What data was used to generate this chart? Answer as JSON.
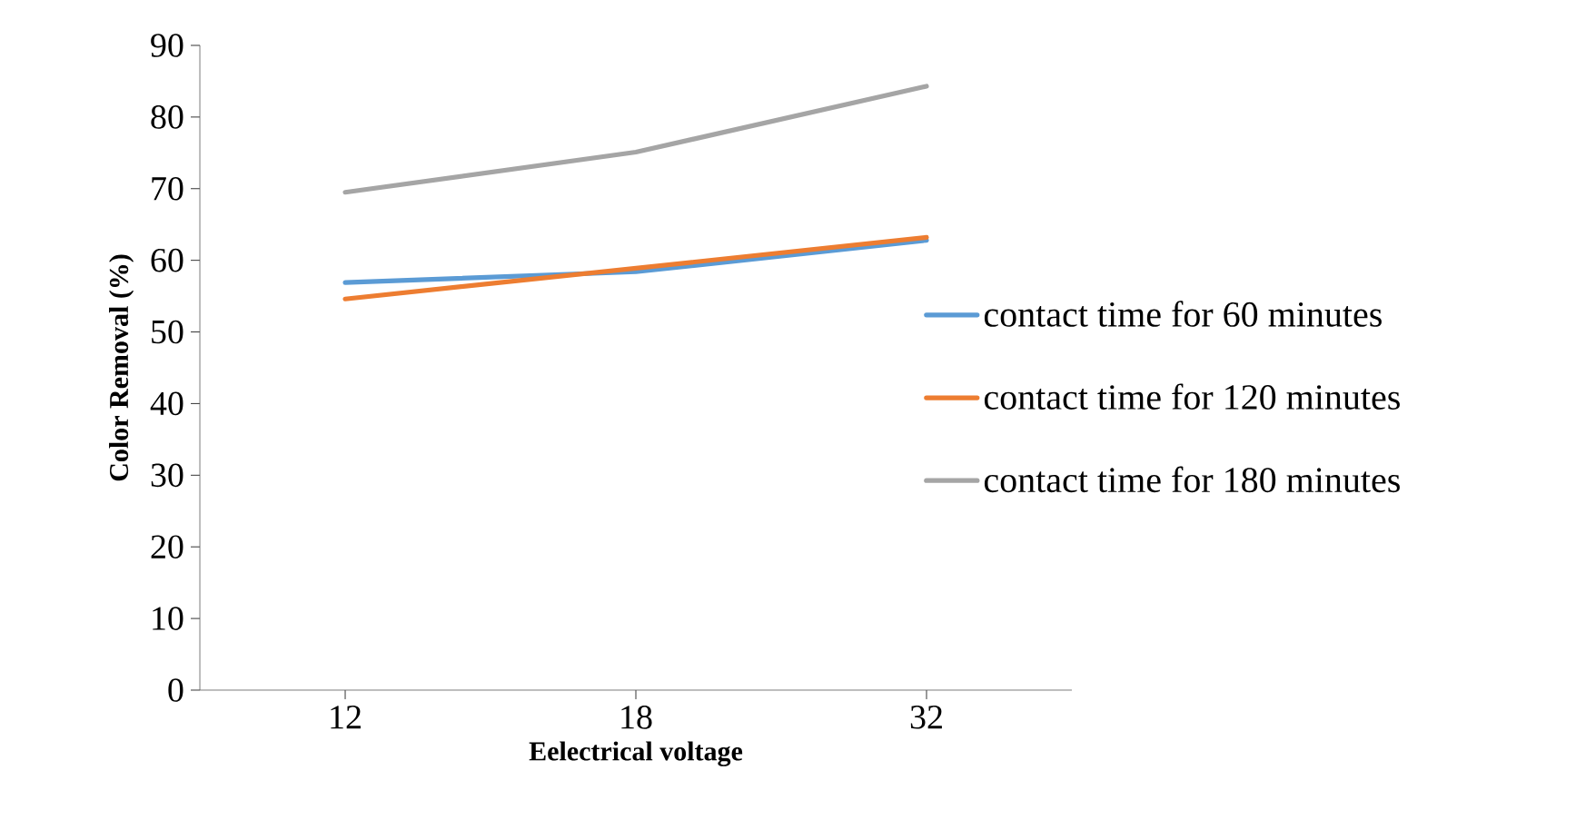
{
  "chart_data": {
    "type": "line",
    "xlabel": "Eelectrical voltage",
    "ylabel": "Color Removal (%)",
    "categories": [
      "12",
      "18",
      "32"
    ],
    "series": [
      {
        "name": "contact time for 60 minutes",
        "color": "#5b9bd5",
        "values": [
          56.9,
          58.4,
          62.8
        ]
      },
      {
        "name": "contact time for 120 minutes",
        "color": "#ed7d31",
        "values": [
          54.6,
          58.9,
          63.2
        ]
      },
      {
        "name": "contact time for 180 minutes",
        "color": "#a5a5a5",
        "values": [
          69.5,
          75.1,
          84.3
        ]
      }
    ],
    "ylim": [
      0,
      90
    ],
    "yticks": [
      0,
      10,
      20,
      30,
      40,
      50,
      60,
      70,
      80,
      90
    ],
    "grid": false,
    "legend": "right",
    "marker": "none",
    "line_style": "solid"
  }
}
